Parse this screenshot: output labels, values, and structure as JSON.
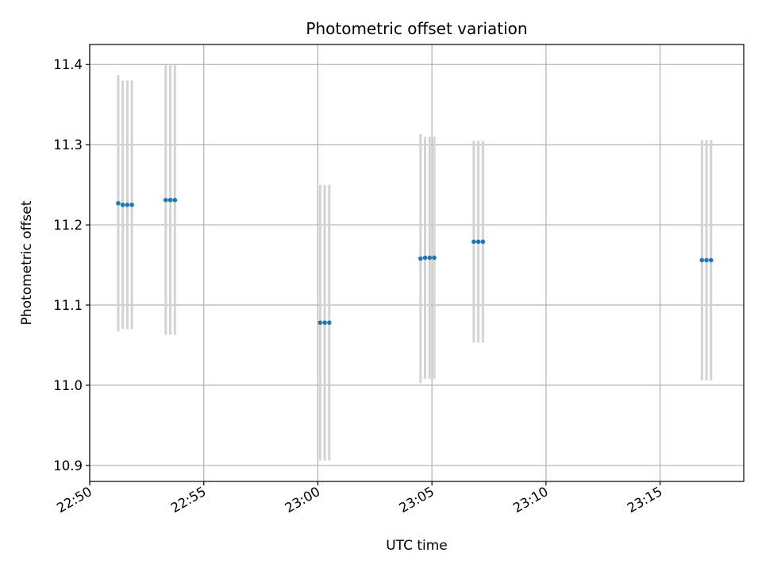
{
  "chart_data": {
    "type": "scatter",
    "title": "Photometric offset variation",
    "xlabel": "UTC time",
    "ylabel": "Photometric offset",
    "x_unit": "time (HH:MM)",
    "xlim": [
      "22:50:00",
      "23:18:40"
    ],
    "ylim": [
      10.88,
      11.425
    ],
    "x_ticks": [
      "22:50",
      "22:55",
      "23:00",
      "23:05",
      "23:10",
      "23:15"
    ],
    "y_ticks": [
      10.9,
      11.0,
      11.1,
      11.2,
      11.3,
      11.4
    ],
    "grid": true,
    "legend": "none",
    "colors": {
      "points": "#1f77b4",
      "error_bars": "#d3d3d3",
      "grid": "#b0b0b0"
    },
    "series": [
      {
        "points": [
          {
            "x": "22:51:15",
            "y": 11.227,
            "err": 0.16
          },
          {
            "x": "22:51:27",
            "y": 11.225,
            "err": 0.155
          },
          {
            "x": "22:51:39",
            "y": 11.225,
            "err": 0.155
          },
          {
            "x": "22:51:51",
            "y": 11.225,
            "err": 0.155
          },
          {
            "x": "22:53:20",
            "y": 11.231,
            "err": 0.168
          },
          {
            "x": "22:53:32",
            "y": 11.231,
            "err": 0.168
          },
          {
            "x": "22:53:44",
            "y": 11.231,
            "err": 0.168
          },
          {
            "x": "23:00:06",
            "y": 11.078,
            "err": 0.172
          },
          {
            "x": "23:00:18",
            "y": 11.078,
            "err": 0.172
          },
          {
            "x": "23:00:30",
            "y": 11.078,
            "err": 0.172
          },
          {
            "x": "23:04:30",
            "y": 11.158,
            "err": 0.155
          },
          {
            "x": "23:04:42",
            "y": 11.159,
            "err": 0.151
          },
          {
            "x": "23:04:54",
            "y": 11.159,
            "err": 0.151
          },
          {
            "x": "23:05:06",
            "y": 11.159,
            "err": 0.151
          },
          {
            "x": "23:06:50",
            "y": 11.179,
            "err": 0.126
          },
          {
            "x": "23:07:02",
            "y": 11.179,
            "err": 0.126
          },
          {
            "x": "23:07:14",
            "y": 11.179,
            "err": 0.126
          },
          {
            "x": "23:16:50",
            "y": 11.156,
            "err": 0.15
          },
          {
            "x": "23:17:02",
            "y": 11.156,
            "err": 0.15
          },
          {
            "x": "23:17:14",
            "y": 11.156,
            "err": 0.15
          }
        ]
      }
    ]
  }
}
